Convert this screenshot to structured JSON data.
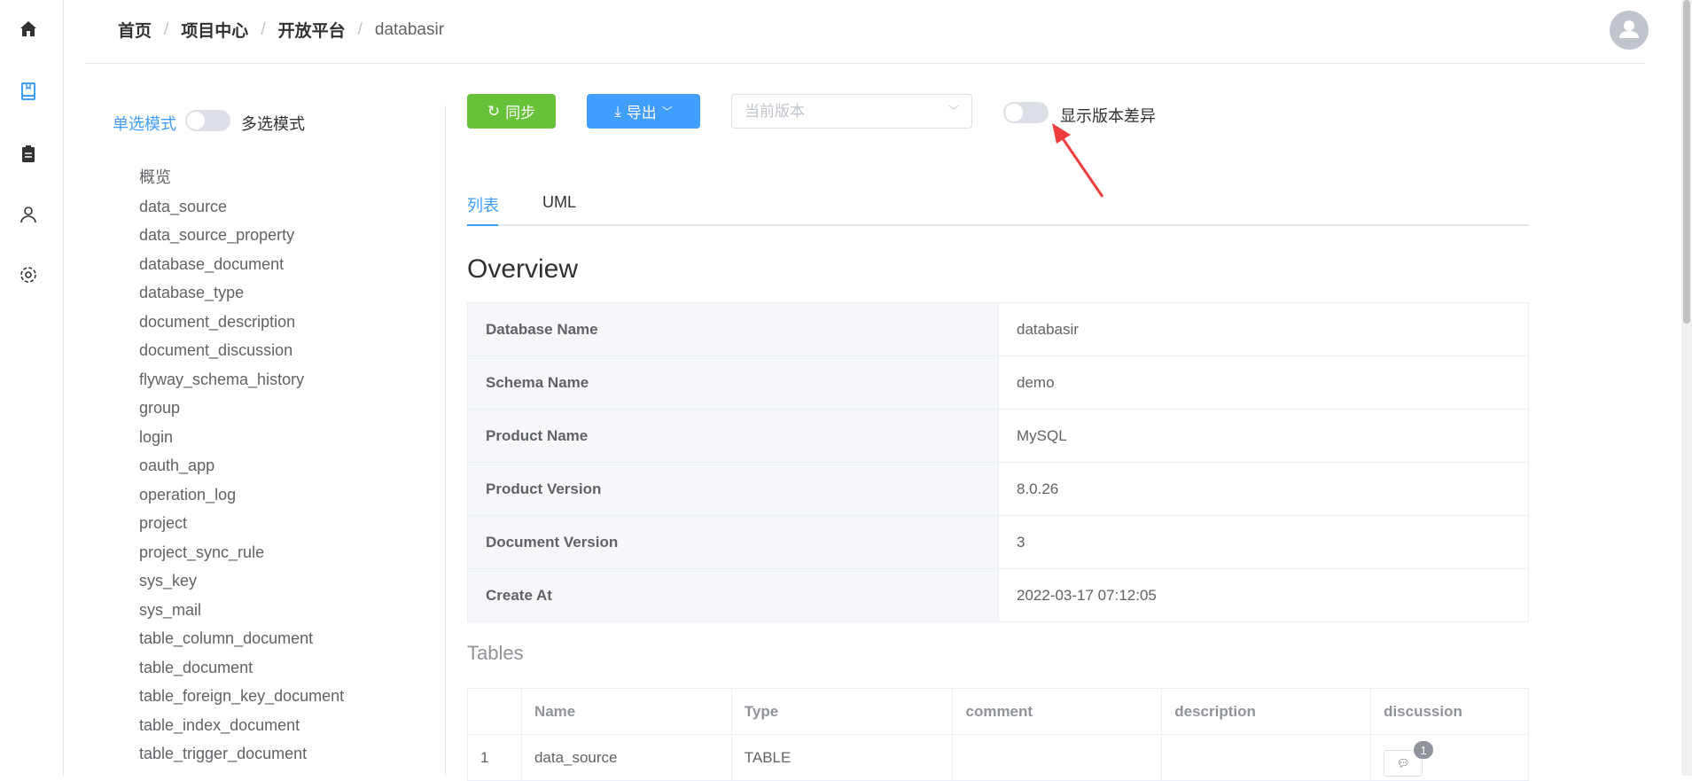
{
  "breadcrumb": [
    "首页",
    "项目中心",
    "开放平台",
    "databasir"
  ],
  "sidebar": {
    "icons": [
      "home-icon",
      "book-icon",
      "clipboard-icon",
      "user-icon",
      "gear-icon"
    ],
    "active": "book-icon"
  },
  "mode": {
    "single": "单选模式",
    "multi": "多选模式",
    "multi_enabled": false
  },
  "tree": [
    "概览",
    "data_source",
    "data_source_property",
    "database_document",
    "database_type",
    "document_description",
    "document_discussion",
    "flyway_schema_history",
    "group",
    "login",
    "oauth_app",
    "operation_log",
    "project",
    "project_sync_rule",
    "sys_key",
    "sys_mail",
    "table_column_document",
    "table_document",
    "table_foreign_key_document",
    "table_index_document",
    "table_trigger_document"
  ],
  "toolbar": {
    "sync": "同步",
    "export": "导出",
    "version_placeholder": "当前版本",
    "diff_label": "显示版本差异",
    "diff_enabled": false
  },
  "tabs": [
    {
      "label": "列表",
      "active": true
    },
    {
      "label": "UML",
      "active": false
    }
  ],
  "overview": {
    "title": "Overview",
    "rows": [
      [
        "Database Name",
        "databasir"
      ],
      [
        "Schema Name",
        "demo"
      ],
      [
        "Product Name",
        "MySQL"
      ],
      [
        "Product Version",
        "8.0.26"
      ],
      [
        "Document Version",
        "3"
      ],
      [
        "Create At",
        "2022-03-17 07:12:05"
      ]
    ]
  },
  "tables": {
    "title": "Tables",
    "columns": [
      "",
      "Name",
      "Type",
      "comment",
      "description",
      "discussion"
    ],
    "rows": [
      {
        "index": "1",
        "name": "data_source",
        "type": "TABLE",
        "comment": "",
        "description": "",
        "discussion_count": "1"
      }
    ]
  },
  "colors": {
    "primary": "#409eff",
    "success": "#67c23a",
    "annotation_arrow": "#f03c3c"
  }
}
